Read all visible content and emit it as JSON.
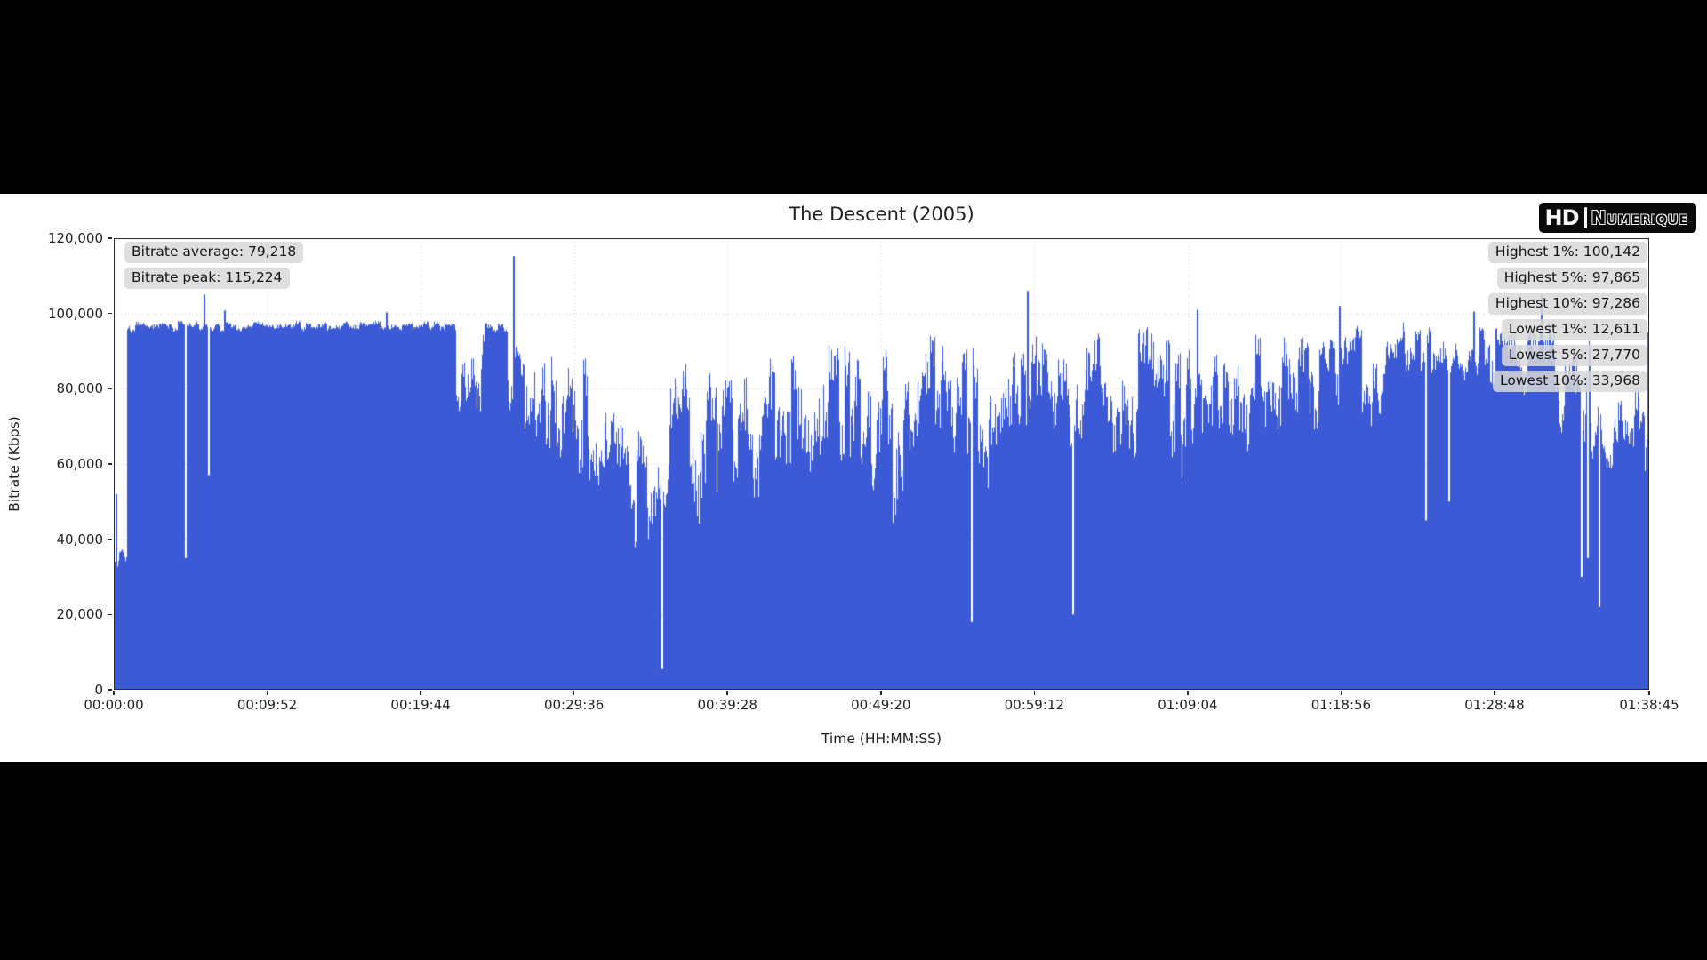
{
  "page": {
    "background": "#000000",
    "figure_background": "#ffffff"
  },
  "logo": {
    "hd": "HD",
    "numerique": "Numerique"
  },
  "chart_data": {
    "type": "area",
    "title": "The Descent (2005)",
    "xlabel": "Time (HH:MM:SS)",
    "ylabel": "Bitrate (Kbps)",
    "legend_position": "none",
    "grid": "dotted",
    "bar_color": "#3c5ad5",
    "grid_color": "#dcdcdc",
    "xlim_seconds": [
      0,
      5925
    ],
    "ylim": [
      0,
      120000
    ],
    "x_ticks": [
      "00:00:00",
      "00:09:52",
      "00:19:44",
      "00:29:36",
      "00:39:28",
      "00:49:20",
      "00:59:12",
      "01:09:04",
      "01:18:56",
      "01:28:48",
      "01:38:45"
    ],
    "x_tick_seconds": [
      0,
      592,
      1184,
      1776,
      2368,
      2960,
      3552,
      4144,
      4736,
      5328,
      5925
    ],
    "y_ticks": [
      "0",
      "20,000",
      "40,000",
      "60,000",
      "80,000",
      "100,000",
      "120,000"
    ],
    "y_tick_values": [
      0,
      20000,
      40000,
      60000,
      80000,
      100000,
      120000
    ],
    "stats": {
      "left": [
        "Bitrate average: 79,218",
        "Bitrate peak: 115,224"
      ],
      "right": [
        "Highest 1%: 100,142",
        "Highest 5%: 97,865",
        "Highest 10%: 97,286",
        "Lowest 1%: 12,611",
        "Lowest 5%: 27,770",
        "Lowest 10%: 33,968"
      ]
    },
    "bitrate_stats_kbps": {
      "average": 79218,
      "peak": 115224,
      "highest_1pct": 100142,
      "highest_5pct": 97865,
      "highest_10pct": 97286,
      "lowest_1pct": 12611,
      "lowest_5pct": 27770,
      "lowest_10pct": 33968
    },
    "envelope_segments": [
      [
        0,
        50,
        31000,
        38000
      ],
      [
        50,
        1320,
        94500,
        98200
      ],
      [
        1320,
        1430,
        62000,
        97500
      ],
      [
        1430,
        1520,
        94000,
        98000
      ],
      [
        1520,
        1570,
        72000,
        93000
      ],
      [
        1570,
        1700,
        48000,
        96000
      ],
      [
        1700,
        1830,
        45000,
        90000
      ],
      [
        1830,
        2000,
        36000,
        78000
      ],
      [
        2000,
        2145,
        34000,
        72000
      ],
      [
        2145,
        2360,
        38000,
        92000
      ],
      [
        2360,
        2560,
        45000,
        94000
      ],
      [
        2560,
        2860,
        55000,
        97500
      ],
      [
        2860,
        3110,
        42000,
        94000
      ],
      [
        3110,
        3310,
        55000,
        97500
      ],
      [
        3310,
        3470,
        45000,
        93000
      ],
      [
        3470,
        3620,
        58000,
        98500
      ],
      [
        3620,
        3780,
        48000,
        95000
      ],
      [
        3780,
        4000,
        58000,
        97500
      ],
      [
        4000,
        4180,
        52000,
        96000
      ],
      [
        4180,
        4430,
        62000,
        97500
      ],
      [
        4430,
        4660,
        58000,
        97000
      ],
      [
        4660,
        4910,
        68000,
        98000
      ],
      [
        4910,
        5340,
        80000,
        98300
      ],
      [
        5340,
        5560,
        76000,
        97800
      ],
      [
        5560,
        5700,
        60000,
        96000
      ],
      [
        5700,
        5870,
        52000,
        78000
      ],
      [
        5870,
        5925,
        55000,
        82000
      ]
    ],
    "spike_dip_events": [
      [
        8,
        52000
      ],
      [
        276,
        35000
      ],
      [
        347,
        105000
      ],
      [
        362,
        57000
      ],
      [
        425,
        100800
      ],
      [
        1050,
        100300
      ],
      [
        1540,
        115224
      ],
      [
        2115,
        5500
      ],
      [
        3308,
        18000
      ],
      [
        3524,
        106000
      ],
      [
        3700,
        20000
      ],
      [
        4178,
        101000
      ],
      [
        4727,
        102000
      ],
      [
        5060,
        45000
      ],
      [
        5150,
        50000
      ],
      [
        5245,
        100500
      ],
      [
        5508,
        105000
      ],
      [
        5662,
        30000
      ],
      [
        5685,
        35000
      ],
      [
        5729,
        22000
      ],
      [
        5918,
        95000
      ]
    ],
    "noise_seed": 7
  }
}
